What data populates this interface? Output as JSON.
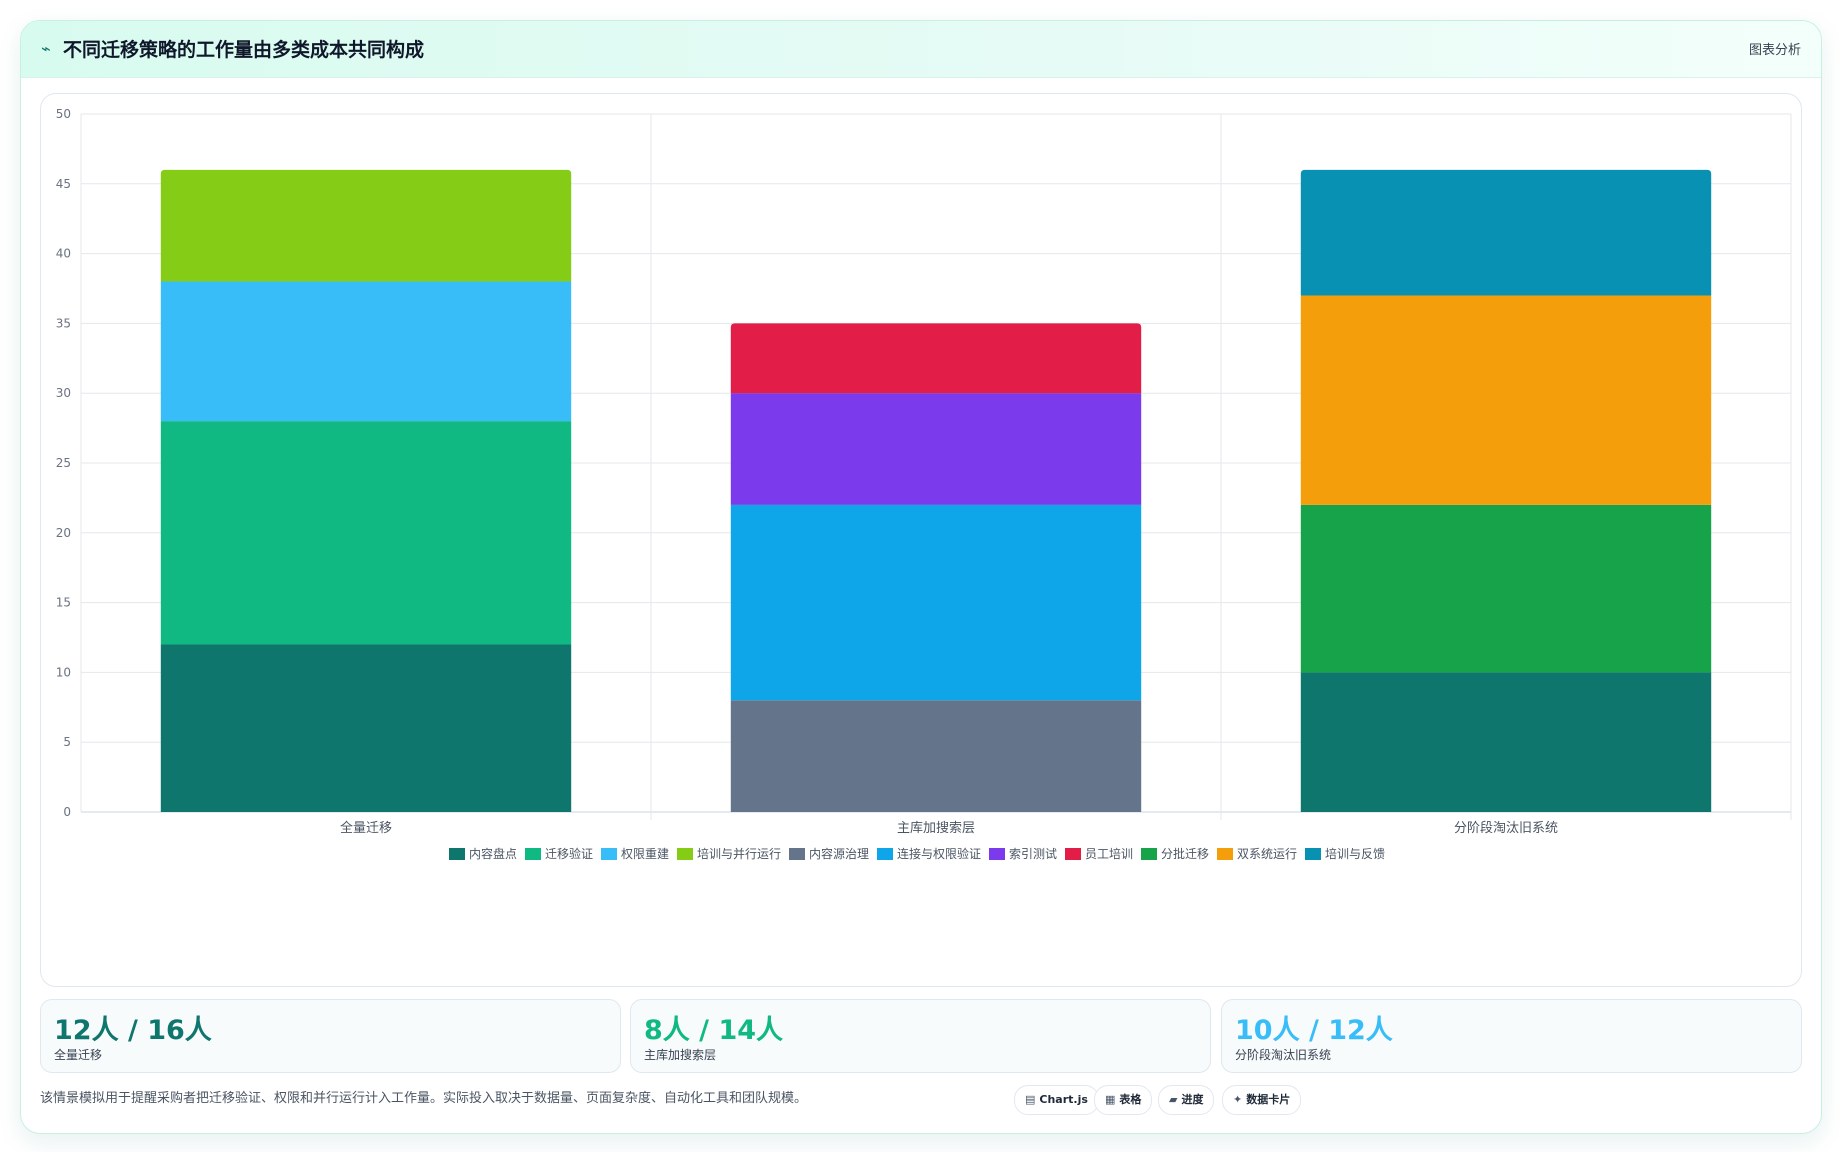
{
  "header": {
    "icon": "trend-icon",
    "title": "不同迁移策略的工作量由多类成本共同构成",
    "link_label": "图表分析"
  },
  "chart_data": {
    "type": "bar",
    "stacked": true,
    "title": "",
    "xlabel": "",
    "ylabel": "",
    "ylim": [
      0,
      50
    ],
    "yticks": [
      0,
      5,
      10,
      15,
      20,
      25,
      30,
      35,
      40,
      45,
      50
    ],
    "grid": true,
    "legend_position": "bottom",
    "categories": [
      "全量迁移",
      "主库加搜索层",
      "分阶段淘汰旧系统"
    ],
    "series": [
      {
        "name": "内容盘点",
        "color": "#0f766e",
        "values": [
          12,
          0,
          10
        ]
      },
      {
        "name": "迁移验证",
        "color": "#10b981",
        "values": [
          16,
          0,
          0
        ]
      },
      {
        "name": "权限重建",
        "color": "#38bdf8",
        "values": [
          10,
          0,
          0
        ]
      },
      {
        "name": "培训与并行运行",
        "color": "#84cc16",
        "values": [
          8,
          0,
          0
        ]
      },
      {
        "name": "内容源治理",
        "color": "#64748b",
        "values": [
          0,
          8,
          0
        ]
      },
      {
        "name": "连接与权限验证",
        "color": "#0ea5e9",
        "values": [
          0,
          14,
          0
        ]
      },
      {
        "name": "索引测试",
        "color": "#7c3aed",
        "values": [
          0,
          8,
          0
        ]
      },
      {
        "name": "员工培训",
        "color": "#e11d48",
        "values": [
          0,
          5,
          0
        ]
      },
      {
        "name": "分批迁移",
        "color": "#16a34a",
        "values": [
          0,
          0,
          12
        ]
      },
      {
        "name": "双系统运行",
        "color": "#f59e0b",
        "values": [
          0,
          0,
          15
        ]
      },
      {
        "name": "培训与反馈",
        "color": "#0891b2",
        "values": [
          0,
          0,
          9
        ]
      }
    ]
  },
  "stats": [
    {
      "value": "12人 / 16人",
      "label": "全量迁移",
      "color": "#0f766e"
    },
    {
      "value": "8人 / 14人",
      "label": "主库加搜索层",
      "color": "#10b981"
    },
    {
      "value": "10人 / 12人",
      "label": "分阶段淘汰旧系统",
      "color": "#38bdf8"
    }
  ],
  "footer": {
    "note": "该情景模拟用于提醒采购者把迁移验证、权限和并行运行计入工作量。实际投入取决于数据量、页面复杂度、自动化工具和团队规模。",
    "chips": [
      {
        "icon": "chart-icon",
        "glyph": "▤",
        "label": "Chart.js"
      },
      {
        "icon": "table-icon",
        "glyph": "▦",
        "label": "表格"
      },
      {
        "icon": "progress-icon",
        "glyph": "▰",
        "label": "进度"
      },
      {
        "icon": "card-icon",
        "glyph": "✦",
        "label": "数据卡片"
      }
    ]
  }
}
